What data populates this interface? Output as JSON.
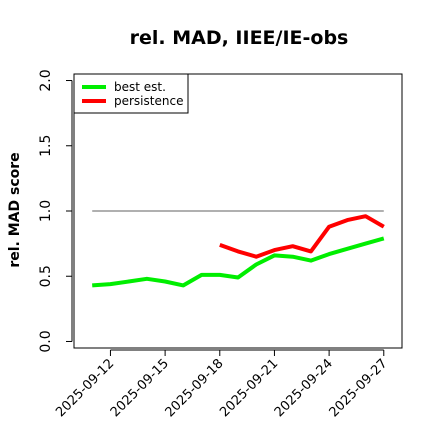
{
  "chart_data": {
    "type": "line",
    "title": "rel. MAD, IIEE/IE-obs",
    "xlabel": "",
    "ylabel": "rel. MAD score",
    "xlim": [
      "2025-09-10",
      "2025-09-28"
    ],
    "ylim": [
      -0.05,
      2.05
    ],
    "yticks": [
      0.0,
      0.5,
      1.0,
      1.5,
      2.0
    ],
    "ytick_labels": [
      "0.0",
      "0.5",
      "1.0",
      "1.5",
      "2.0"
    ],
    "xticks": [
      "2025-09-12",
      "2025-09-15",
      "2025-09-18",
      "2025-09-21",
      "2025-09-24",
      "2025-09-27"
    ],
    "xtick_labels": [
      "2025-09-12",
      "2025-09-15",
      "2025-09-18",
      "2025-09-21",
      "2025-09-24",
      "2025-09-27"
    ],
    "grid": false,
    "legend_position": "top-left",
    "reference_line": {
      "y": 1.0,
      "x": [
        "2025-09-11",
        "2025-09-27"
      ],
      "color": "#808080"
    },
    "series": [
      {
        "name": "best est.",
        "color": "#00ee00",
        "x": [
          "2025-09-11",
          "2025-09-12",
          "2025-09-13",
          "2025-09-14",
          "2025-09-15",
          "2025-09-16",
          "2025-09-17",
          "2025-09-18",
          "2025-09-19",
          "2025-09-20",
          "2025-09-21",
          "2025-09-22",
          "2025-09-23",
          "2025-09-24",
          "2025-09-25",
          "2025-09-26",
          "2025-09-27"
        ],
        "values": [
          0.43,
          0.44,
          0.46,
          0.48,
          0.46,
          0.43,
          0.51,
          0.51,
          0.49,
          0.59,
          0.66,
          0.65,
          0.62,
          0.67,
          0.71,
          0.75,
          0.79
        ]
      },
      {
        "name": "persistence",
        "color": "#ff0000",
        "x": [
          "2025-09-18",
          "2025-09-19",
          "2025-09-20",
          "2025-09-21",
          "2025-09-22",
          "2025-09-23",
          "2025-09-24",
          "2025-09-25",
          "2025-09-26",
          "2025-09-27"
        ],
        "values": [
          0.74,
          0.69,
          0.65,
          0.7,
          0.73,
          0.69,
          0.88,
          0.93,
          0.96,
          0.88
        ]
      }
    ]
  }
}
